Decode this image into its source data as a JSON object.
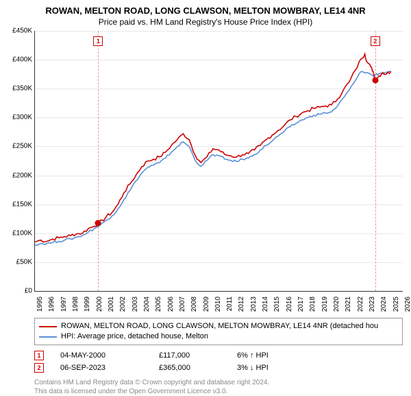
{
  "title": "ROWAN, MELTON ROAD, LONG CLAWSON, MELTON MOWBRAY, LE14 4NR",
  "subtitle": "Price paid vs. HM Land Registry's House Price Index (HPI)",
  "chart": {
    "type": "line",
    "background_color": "#ffffff",
    "grid_color": "#e6e6e6",
    "axis_color": "#333333",
    "x_min": 1995,
    "x_max": 2026,
    "y_min": 0,
    "y_max": 450000,
    "y_ticks": [
      0,
      50000,
      100000,
      150000,
      200000,
      250000,
      300000,
      350000,
      400000,
      450000
    ],
    "y_tick_labels": [
      "£0",
      "£50K",
      "£100K",
      "£150K",
      "£200K",
      "£250K",
      "£300K",
      "£350K",
      "£400K",
      "£450K"
    ],
    "x_ticks": [
      1995,
      1996,
      1997,
      1998,
      1999,
      2000,
      2001,
      2002,
      2003,
      2004,
      2005,
      2006,
      2007,
      2008,
      2009,
      2010,
      2011,
      2012,
      2013,
      2014,
      2015,
      2016,
      2017,
      2018,
      2019,
      2020,
      2021,
      2022,
      2023,
      2024,
      2025,
      2026
    ],
    "label_fontsize": 10,
    "line_width": 1.6,
    "series": [
      {
        "name": "property",
        "label": "ROWAN, MELTON ROAD, LONG CLAWSON, MELTON MOWBRAY, LE14 4NR (detached hou",
        "color": "#cc0000",
        "points": [
          [
            1995.0,
            85000
          ],
          [
            1995.5,
            88000
          ],
          [
            1996.0,
            86000
          ],
          [
            1996.5,
            90000
          ],
          [
            1997.0,
            92000
          ],
          [
            1997.5,
            94000
          ],
          [
            1998.0,
            96000
          ],
          [
            1998.5,
            99000
          ],
          [
            1999.0,
            100000
          ],
          [
            1999.5,
            108000
          ],
          [
            2000.0,
            112000
          ],
          [
            2000.33,
            117000
          ],
          [
            2000.7,
            122000
          ],
          [
            2001.0,
            128000
          ],
          [
            2001.5,
            136000
          ],
          [
            2002.0,
            150000
          ],
          [
            2002.5,
            170000
          ],
          [
            2003.0,
            185000
          ],
          [
            2003.5,
            200000
          ],
          [
            2004.0,
            215000
          ],
          [
            2004.5,
            225000
          ],
          [
            2005.0,
            228000
          ],
          [
            2005.5,
            232000
          ],
          [
            2006.0,
            240000
          ],
          [
            2006.5,
            252000
          ],
          [
            2007.0,
            262000
          ],
          [
            2007.5,
            272000
          ],
          [
            2008.0,
            262000
          ],
          [
            2008.5,
            235000
          ],
          [
            2009.0,
            222000
          ],
          [
            2009.5,
            232000
          ],
          [
            2010.0,
            246000
          ],
          [
            2010.5,
            244000
          ],
          [
            2011.0,
            236000
          ],
          [
            2011.5,
            234000
          ],
          [
            2012.0,
            232000
          ],
          [
            2012.5,
            236000
          ],
          [
            2013.0,
            238000
          ],
          [
            2013.5,
            244000
          ],
          [
            2014.0,
            252000
          ],
          [
            2014.5,
            262000
          ],
          [
            2015.0,
            270000
          ],
          [
            2015.5,
            278000
          ],
          [
            2016.0,
            286000
          ],
          [
            2016.5,
            296000
          ],
          [
            2017.0,
            302000
          ],
          [
            2017.5,
            308000
          ],
          [
            2018.0,
            312000
          ],
          [
            2018.5,
            316000
          ],
          [
            2019.0,
            318000
          ],
          [
            2019.5,
            320000
          ],
          [
            2020.0,
            322000
          ],
          [
            2020.5,
            332000
          ],
          [
            2021.0,
            348000
          ],
          [
            2021.5,
            362000
          ],
          [
            2022.0,
            382000
          ],
          [
            2022.5,
            402000
          ],
          [
            2022.8,
            410000
          ],
          [
            2023.0,
            396000
          ],
          [
            2023.3,
            388000
          ],
          [
            2023.5,
            380000
          ],
          [
            2023.68,
            365000
          ],
          [
            2024.0,
            372000
          ],
          [
            2024.3,
            378000
          ],
          [
            2024.6,
            375000
          ],
          [
            2025.0,
            380000
          ]
        ]
      },
      {
        "name": "hpi",
        "label": "HPI: Average price, detached house, Melton",
        "color": "#5b8fd6",
        "points": [
          [
            1995.0,
            80000
          ],
          [
            1995.5,
            82000
          ],
          [
            1996.0,
            82000
          ],
          [
            1996.5,
            84000
          ],
          [
            1997.0,
            86000
          ],
          [
            1997.5,
            88000
          ],
          [
            1998.0,
            90000
          ],
          [
            1998.5,
            93000
          ],
          [
            1999.0,
            96000
          ],
          [
            1999.5,
            102000
          ],
          [
            2000.0,
            108000
          ],
          [
            2000.5,
            114000
          ],
          [
            2001.0,
            122000
          ],
          [
            2001.5,
            130000
          ],
          [
            2002.0,
            142000
          ],
          [
            2002.5,
            158000
          ],
          [
            2003.0,
            174000
          ],
          [
            2003.5,
            190000
          ],
          [
            2004.0,
            204000
          ],
          [
            2004.5,
            214000
          ],
          [
            2005.0,
            218000
          ],
          [
            2005.5,
            222000
          ],
          [
            2006.0,
            230000
          ],
          [
            2006.5,
            240000
          ],
          [
            2007.0,
            250000
          ],
          [
            2007.5,
            258000
          ],
          [
            2008.0,
            250000
          ],
          [
            2008.5,
            226000
          ],
          [
            2009.0,
            216000
          ],
          [
            2009.5,
            226000
          ],
          [
            2010.0,
            236000
          ],
          [
            2010.5,
            234000
          ],
          [
            2011.0,
            228000
          ],
          [
            2011.5,
            226000
          ],
          [
            2012.0,
            224000
          ],
          [
            2012.5,
            228000
          ],
          [
            2013.0,
            230000
          ],
          [
            2013.5,
            236000
          ],
          [
            2014.0,
            244000
          ],
          [
            2014.5,
            252000
          ],
          [
            2015.0,
            260000
          ],
          [
            2015.5,
            268000
          ],
          [
            2016.0,
            276000
          ],
          [
            2016.5,
            284000
          ],
          [
            2017.0,
            290000
          ],
          [
            2017.5,
            296000
          ],
          [
            2018.0,
            300000
          ],
          [
            2018.5,
            304000
          ],
          [
            2019.0,
            306000
          ],
          [
            2019.5,
            308000
          ],
          [
            2020.0,
            310000
          ],
          [
            2020.5,
            320000
          ],
          [
            2021.0,
            334000
          ],
          [
            2021.5,
            348000
          ],
          [
            2022.0,
            364000
          ],
          [
            2022.5,
            380000
          ],
          [
            2023.0,
            378000
          ],
          [
            2023.5,
            372000
          ],
          [
            2023.68,
            374000
          ],
          [
            2024.0,
            376000
          ],
          [
            2024.5,
            378000
          ],
          [
            2025.0,
            380000
          ]
        ]
      }
    ],
    "markers": [
      {
        "id": "1",
        "x": 2000.33,
        "y": 117000
      },
      {
        "id": "2",
        "x": 2023.68,
        "y": 365000
      }
    ]
  },
  "legend": {
    "items": [
      {
        "color": "#cc0000",
        "text": "ROWAN, MELTON ROAD, LONG CLAWSON, MELTON MOWBRAY, LE14 4NR (detached hou"
      },
      {
        "color": "#5b8fd6",
        "text": "HPI: Average price, detached house, Melton"
      }
    ]
  },
  "marker_table": [
    {
      "id": "1",
      "date": "04-MAY-2000",
      "price": "£117,000",
      "delta": "6% ↑ HPI"
    },
    {
      "id": "2",
      "date": "06-SEP-2023",
      "price": "£365,000",
      "delta": "3% ↓ HPI"
    }
  ],
  "attribution": {
    "line1": "Contains HM Land Registry data © Crown copyright and database right 2024.",
    "line2": "This data is licensed under the Open Government Licence v3.0."
  }
}
